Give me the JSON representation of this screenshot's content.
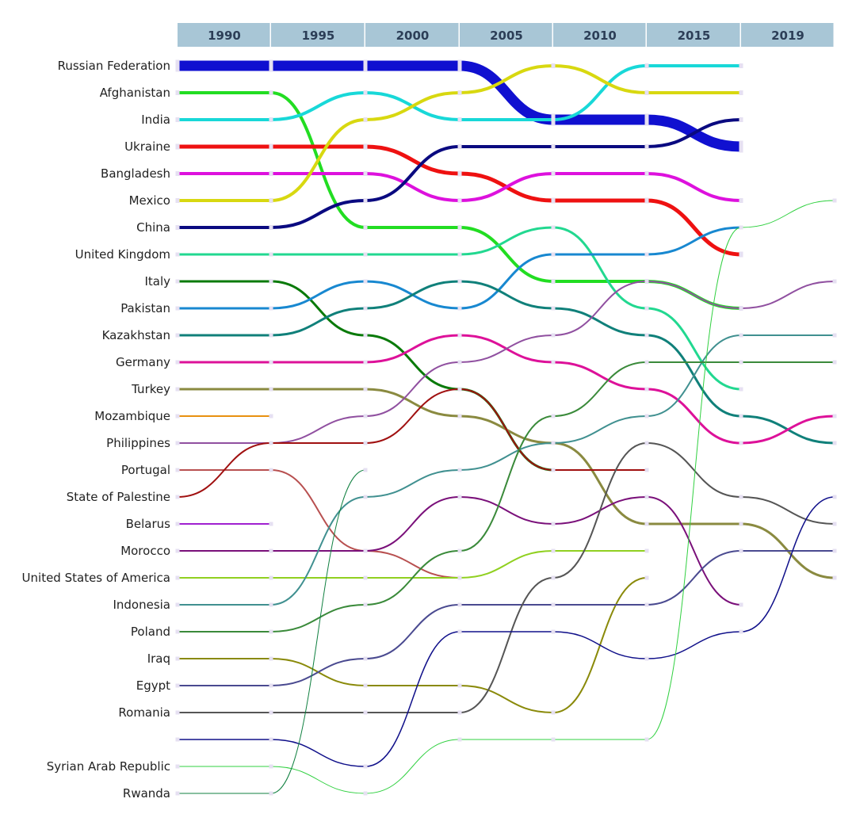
{
  "chart_data": {
    "type": "bump",
    "title": "",
    "years": [
      "1990",
      "1995",
      "2000",
      "2005",
      "2010",
      "2015",
      "2019"
    ],
    "header_color": "#a8c6d6",
    "node_color": "#e6e0f2",
    "labels": [
      "Russian Federation",
      "Afghanistan",
      "India",
      "Ukraine",
      "Bangladesh",
      "Mexico",
      "China",
      "United Kingdom",
      "Italy",
      "Pakistan",
      "Kazakhstan",
      "Germany",
      "Turkey",
      "Mozambique",
      "Philippines",
      "Portugal",
      "State of Palestine",
      "Belarus",
      "Morocco",
      "United States of America",
      "Indonesia",
      "Poland",
      "Iraq",
      "Egypt",
      "Romania",
      "",
      "Syrian Arab Republic",
      "Rwanda"
    ],
    "series": [
      {
        "name": "Russian Federation",
        "color": "#1010d0",
        "ranks": [
          1,
          1,
          1,
          1,
          3,
          3,
          4
        ]
      },
      {
        "name": "Afghanistan",
        "color": "#22dd22",
        "ranks": [
          2,
          2,
          7,
          7,
          9,
          9,
          10
        ]
      },
      {
        "name": "India",
        "color": "#18d8d8",
        "ranks": [
          3,
          3,
          2,
          3,
          3,
          1,
          1
        ]
      },
      {
        "name": "Ukraine",
        "color": "#ee1111",
        "ranks": [
          4,
          4,
          4,
          5,
          6,
          6,
          8
        ]
      },
      {
        "name": "Bangladesh",
        "color": "#dd11dd",
        "ranks": [
          5,
          5,
          5,
          6,
          5,
          5,
          6
        ]
      },
      {
        "name": "Mexico",
        "color": "#d8d810",
        "ranks": [
          6,
          6,
          3,
          2,
          1,
          2,
          2
        ]
      },
      {
        "name": "China",
        "color": "#0a0a80",
        "ranks": [
          7,
          7,
          6,
          4,
          4,
          4,
          3
        ]
      },
      {
        "name": "United Kingdom",
        "color": "#22d890",
        "ranks": [
          8,
          8,
          8,
          8,
          7,
          10,
          13
        ]
      },
      {
        "name": "Italy",
        "color": "#0a7a0a",
        "ranks": [
          9,
          9,
          11,
          13,
          16
        ]
      },
      {
        "name": "Pakistan",
        "color": "#1888d0",
        "ranks": [
          10,
          10,
          9,
          10,
          8,
          8,
          7
        ]
      },
      {
        "name": "Kazakhstan",
        "color": "#10807a",
        "ranks": [
          11,
          11,
          10,
          9,
          10,
          11,
          14,
          15
        ]
      },
      {
        "name": "Germany",
        "color": "#dd1199",
        "ranks": [
          12,
          12,
          12,
          11,
          12,
          13,
          15,
          14
        ]
      },
      {
        "name": "Turkey",
        "color": "#8a8a40",
        "ranks": [
          13,
          13,
          13,
          14,
          15,
          18,
          18,
          20
        ]
      },
      {
        "name": "Mozambique",
        "color": "#e89010",
        "ranks": [
          14,
          14
        ]
      },
      {
        "name": "Philippines",
        "color": "#9050a0",
        "ranks": [
          15,
          15,
          14,
          12,
          11,
          9,
          10,
          9
        ]
      },
      {
        "name": "Portugal",
        "color": "#b85050",
        "ranks": [
          16,
          16,
          19,
          20
        ]
      },
      {
        "name": "State of Palestine",
        "color": "#a01010",
        "ranks": [
          17,
          15,
          15,
          13,
          16,
          16
        ]
      },
      {
        "name": "Belarus",
        "color": "#a020d0",
        "ranks": [
          18,
          18
        ]
      },
      {
        "name": "Morocco",
        "color": "#7a107a",
        "ranks": [
          19,
          19,
          19,
          17,
          18,
          17,
          21
        ]
      },
      {
        "name": "United States of America",
        "color": "#90d020",
        "ranks": [
          20,
          20,
          20,
          20,
          19,
          19
        ]
      },
      {
        "name": "Indonesia",
        "color": "#409090",
        "ranks": [
          21,
          21,
          17,
          16,
          15,
          14,
          11,
          11
        ]
      },
      {
        "name": "Poland",
        "color": "#3a8a3a",
        "ranks": [
          22,
          22,
          21,
          19,
          14,
          12,
          12,
          12
        ]
      },
      {
        "name": "Iraq",
        "color": "#8a8a0a",
        "ranks": [
          23,
          23,
          24,
          24,
          25,
          20
        ]
      },
      {
        "name": "Egypt",
        "color": "#4a4a90",
        "ranks": [
          24,
          24,
          23,
          21,
          21,
          21,
          19,
          19
        ]
      },
      {
        "name": "Romania",
        "color": "#555555",
        "ranks": [
          25,
          25,
          25,
          25,
          20,
          15,
          17,
          18
        ]
      },
      {
        "name": "",
        "color": "#10108a",
        "ranks": [
          26,
          26,
          27,
          22,
          22,
          23,
          22,
          17
        ]
      },
      {
        "name": "Syrian Arab Republic",
        "color": "#30d040",
        "ranks": [
          27,
          27,
          28,
          26,
          26,
          26,
          7,
          6
        ]
      },
      {
        "name": "Rwanda",
        "color": "#108040",
        "ranks": [
          28,
          28,
          16
        ]
      }
    ],
    "widths": [
      13,
      4,
      4,
      5,
      4,
      4,
      4,
      3,
      3,
      3,
      3,
      3,
      3,
      2,
      2,
      2,
      2,
      2,
      2,
      2,
      2,
      2,
      2,
      2,
      2,
      1.5,
      1,
      1
    ],
    "xlabel": "",
    "ylabel": ""
  }
}
